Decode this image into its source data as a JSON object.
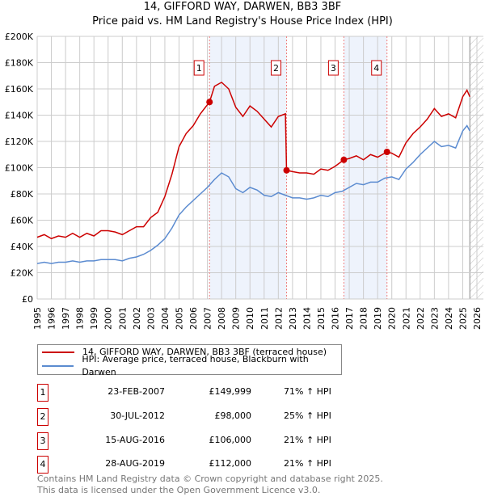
{
  "chart_data": {
    "type": "line",
    "title": "14, GIFFORD WAY, DARWEN, BB3 3BF",
    "subtitle": "Price paid vs. HM Land Registry's House Price Index (HPI)",
    "xlim": [
      1995,
      2026
    ],
    "ylim": [
      0,
      200000
    ],
    "y_ticks": [
      {
        "v": 0,
        "label": "£0"
      },
      {
        "v": 20000,
        "label": "£20K"
      },
      {
        "v": 40000,
        "label": "£40K"
      },
      {
        "v": 60000,
        "label": "£60K"
      },
      {
        "v": 80000,
        "label": "£80K"
      },
      {
        "v": 100000,
        "label": "£100K"
      },
      {
        "v": 120000,
        "label": "£120K"
      },
      {
        "v": 140000,
        "label": "£140K"
      },
      {
        "v": 160000,
        "label": "£160K"
      },
      {
        "v": 180000,
        "label": "£180K"
      },
      {
        "v": 200000,
        "label": "£200K"
      }
    ],
    "x_ticks": [
      "1995",
      "1996",
      "1997",
      "1998",
      "1999",
      "2000",
      "2001",
      "2002",
      "2003",
      "2004",
      "2005",
      "2006",
      "2007",
      "2008",
      "2009",
      "2010",
      "2011",
      "2012",
      "2013",
      "2014",
      "2015",
      "2016",
      "2017",
      "2018",
      "2019",
      "2020",
      "2021",
      "2022",
      "2023",
      "2024",
      "2025",
      "2026"
    ],
    "grid": true,
    "shaded_periods": [
      [
        2007.15,
        2012.58
      ],
      [
        2016.62,
        2019.66
      ]
    ],
    "forecast_hatch_from": 2025.5,
    "series": [
      {
        "name": "14, GIFFORD WAY, DARWEN, BB3 3BF (terraced house)",
        "color": "#cc0000",
        "x": [
          1995,
          1995.5,
          1996,
          1996.5,
          1997,
          1997.5,
          1998,
          1998.5,
          1999,
          1999.5,
          2000,
          2000.5,
          2001,
          2001.5,
          2002,
          2002.5,
          2003,
          2003.5,
          2004,
          2004.5,
          2005,
          2005.5,
          2006,
          2006.5,
          2007.15,
          2007.5,
          2008,
          2008.5,
          2009,
          2009.5,
          2010,
          2010.5,
          2011,
          2011.5,
          2012,
          2012.5,
          2012.58,
          2013,
          2013.5,
          2014,
          2014.5,
          2015,
          2015.5,
          2016,
          2016.62,
          2017,
          2017.5,
          2018,
          2018.5,
          2019,
          2019.66,
          2020,
          2020.5,
          2021,
          2021.5,
          2022,
          2022.5,
          2023,
          2023.5,
          2024,
          2024.5,
          2025,
          2025.3,
          2025.5
        ],
        "y": [
          47000,
          49000,
          46000,
          48000,
          47000,
          50000,
          47000,
          50000,
          48000,
          52000,
          52000,
          51000,
          49000,
          52000,
          55000,
          55000,
          62000,
          66000,
          78000,
          95000,
          116000,
          126000,
          132000,
          141000,
          149999,
          162000,
          165000,
          160000,
          146000,
          139000,
          147000,
          143000,
          137000,
          131000,
          139000,
          141000,
          98000,
          97000,
          96000,
          96000,
          95000,
          99000,
          98000,
          101000,
          106000,
          107000,
          109000,
          106000,
          110000,
          108000,
          112000,
          111000,
          108000,
          119000,
          126000,
          131000,
          137000,
          145000,
          139000,
          141000,
          138000,
          154000,
          159000,
          154000
        ]
      },
      {
        "name": "HPI: Average price, terraced house, Blackburn with Darwen",
        "color": "#5b8bd0",
        "x": [
          1995,
          1995.5,
          1996,
          1996.5,
          1997,
          1997.5,
          1998,
          1998.5,
          1999,
          1999.5,
          2000,
          2000.5,
          2001,
          2001.5,
          2002,
          2002.5,
          2003,
          2003.5,
          2004,
          2004.5,
          2005,
          2005.5,
          2006,
          2006.5,
          2007,
          2007.5,
          2008,
          2008.5,
          2009,
          2009.5,
          2010,
          2010.5,
          2011,
          2011.5,
          2012,
          2012.5,
          2013,
          2013.5,
          2014,
          2014.5,
          2015,
          2015.5,
          2016,
          2016.5,
          2017,
          2017.5,
          2018,
          2018.5,
          2019,
          2019.5,
          2020,
          2020.5,
          2021,
          2021.5,
          2022,
          2022.5,
          2023,
          2023.5,
          2024,
          2024.5,
          2025,
          2025.3,
          2025.5
        ],
        "y": [
          27000,
          28000,
          27000,
          28000,
          28000,
          29000,
          28000,
          29000,
          29000,
          30000,
          30000,
          30000,
          29000,
          31000,
          32000,
          34000,
          37000,
          41000,
          46000,
          54000,
          64000,
          70000,
          75000,
          80000,
          85000,
          91000,
          96000,
          93000,
          84000,
          81000,
          85000,
          83000,
          79000,
          78000,
          81000,
          79000,
          77000,
          77000,
          76000,
          77000,
          79000,
          78000,
          81000,
          82000,
          85000,
          88000,
          87000,
          89000,
          89000,
          92000,
          93000,
          91000,
          99000,
          104000,
          110000,
          115000,
          120000,
          116000,
          117000,
          115000,
          128000,
          132000,
          128000
        ]
      }
    ],
    "markers": [
      {
        "n": "1",
        "x": 2007.15,
        "y": 149999
      },
      {
        "n": "2",
        "x": 2012.58,
        "y": 98000
      },
      {
        "n": "3",
        "x": 2016.62,
        "y": 106000
      },
      {
        "n": "4",
        "x": 2019.66,
        "y": 112000
      }
    ]
  },
  "legend": [
    "14, GIFFORD WAY, DARWEN, BB3 3BF (terraced house)",
    "HPI: Average price, terraced house, Blackburn with Darwen"
  ],
  "transactions": [
    {
      "n": "1",
      "date": "23-FEB-2007",
      "price": "£149,999",
      "hpi": "71% ↑ HPI"
    },
    {
      "n": "2",
      "date": "30-JUL-2012",
      "price": "£98,000",
      "hpi": "25% ↑ HPI"
    },
    {
      "n": "3",
      "date": "15-AUG-2016",
      "price": "£106,000",
      "hpi": "21% ↑ HPI"
    },
    {
      "n": "4",
      "date": "28-AUG-2019",
      "price": "£112,000",
      "hpi": "21% ↑ HPI"
    }
  ],
  "footer": [
    "Contains HM Land Registry data © Crown copyright and database right 2025.",
    "This data is licensed under the Open Government Licence v3.0."
  ]
}
